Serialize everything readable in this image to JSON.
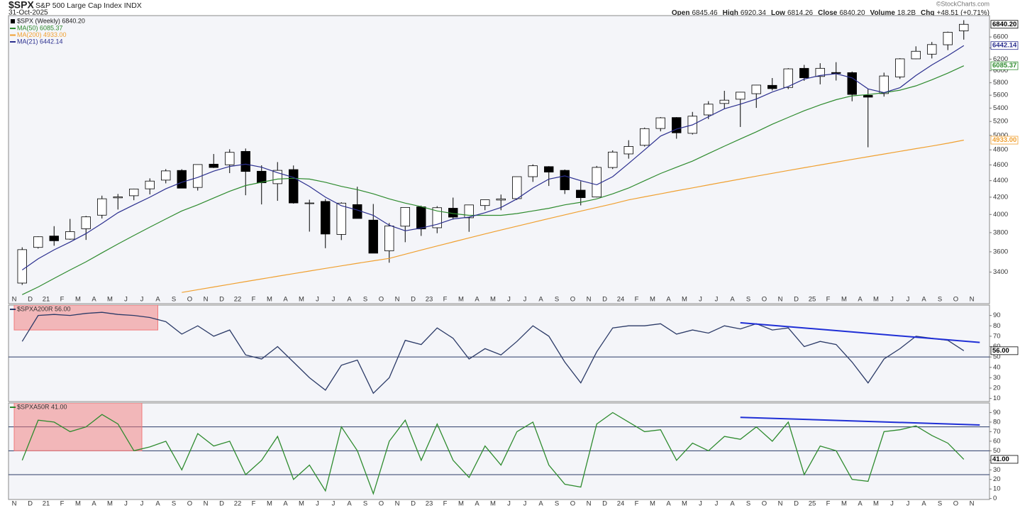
{
  "header": {
    "symbol": "$SPX",
    "name": "S&P 500 Large Cap Index INDX",
    "date": "31-Oct-2025",
    "watermark": "©StockCharts.com",
    "quote": [
      {
        "label": "Open",
        "value": "6845.46"
      },
      {
        "label": "High",
        "value": "6920.34"
      },
      {
        "label": "Low",
        "value": "6814.26"
      },
      {
        "label": "Close",
        "value": "6840.20"
      },
      {
        "label": "Volume",
        "value": "18.2B"
      },
      {
        "label": "Chg",
        "value": "+48.51 (+0.71%)"
      }
    ]
  },
  "chart_data": [
    {
      "type": "candlestick",
      "name": "$SPX (Weekly) 6840.20",
      "log_scale": true,
      "up_color": "#ffffff",
      "down_color": "#000000",
      "x": [
        "2020-11",
        "2020-12",
        "2021-01",
        "2021-02",
        "2021-03",
        "2021-04",
        "2021-05",
        "2021-06",
        "2021-07",
        "2021-08",
        "2021-09",
        "2021-10",
        "2021-11",
        "2021-12",
        "2022-01",
        "2022-02",
        "2022-03",
        "2022-04",
        "2022-05",
        "2022-06",
        "2022-07",
        "2022-08",
        "2022-09",
        "2022-10",
        "2022-11",
        "2022-12",
        "2023-01",
        "2023-02",
        "2023-03",
        "2023-04",
        "2023-05",
        "2023-06",
        "2023-07",
        "2023-08",
        "2023-09",
        "2023-10",
        "2023-11",
        "2023-12",
        "2024-01",
        "2024-02",
        "2024-03",
        "2024-04",
        "2024-05",
        "2024-06",
        "2024-07",
        "2024-08",
        "2024-09",
        "2024-10",
        "2024-11",
        "2024-12",
        "2025-01",
        "2025-02",
        "2025-03",
        "2025-04",
        "2025-05",
        "2025-06",
        "2025-07",
        "2025-08",
        "2025-09",
        "2025-10"
      ],
      "open": [
        3296,
        3645,
        3764,
        3731,
        3842,
        3992,
        4192,
        4217,
        4300,
        4407,
        4529,
        4317,
        4610,
        4602,
        4779,
        4519,
        4363,
        4540,
        4130,
        4150,
        3781,
        4113,
        3937,
        3610,
        3870,
        4087,
        3853,
        4071,
        3963,
        4102,
        4166,
        4183,
        4450,
        4578,
        4530,
        4284,
        4202,
        4567,
        4745,
        4862,
        5098,
        5258,
        5029,
        5297,
        5471,
        5537,
        5624,
        5758,
        5724,
        6041,
        5904,
        5970,
        5968,
        5598,
        5626,
        5897,
        6205,
        6288,
        6457,
        6715
      ],
      "high": [
        3646,
        3760,
        3870,
        3950,
        3983,
        4218,
        4238,
        4302,
        4429,
        4546,
        4545,
        4608,
        4744,
        4808,
        4818,
        4595,
        4637,
        4593,
        4170,
        4178,
        4140,
        4325,
        4120,
        3905,
        4080,
        4101,
        4095,
        4195,
        4110,
        4170,
        4231,
        4448,
        4607,
        4584,
        4541,
        4393,
        4587,
        4793,
        4932,
        5111,
        5265,
        5264,
        5342,
        5506,
        5670,
        5652,
        5767,
        5878,
        6044,
        6100,
        6129,
        6147,
        5987,
        5696,
        5968,
        6216,
        6428,
        6508,
        6700,
        6920
      ],
      "low": [
        3279,
        3633,
        3662,
        3725,
        3723,
        3955,
        4056,
        4164,
        4233,
        4367,
        4306,
        4279,
        4560,
        4495,
        4223,
        4115,
        4157,
        4124,
        3811,
        3637,
        3721,
        3955,
        3585,
        3491,
        3699,
        3765,
        3794,
        3943,
        3809,
        4049,
        4048,
        4167,
        4385,
        4335,
        4238,
        4104,
        4197,
        4547,
        4682,
        4845,
        5057,
        4953,
        5012,
        5235,
        5391,
        5120,
        5403,
        5675,
        5697,
        5832,
        5774,
        5837,
        5505,
        4835,
        5578,
        5862,
        6201,
        6212,
        6360,
        6551
      ],
      "close": [
        3622,
        3756,
        3714,
        3811,
        3973,
        4181,
        4204,
        4298,
        4395,
        4523,
        4308,
        4605,
        4567,
        4766,
        4516,
        4374,
        4530,
        4132,
        4132,
        3785,
        4130,
        3955,
        3586,
        3872,
        4080,
        3840,
        4077,
        3970,
        4109,
        4169,
        4180,
        4450,
        4589,
        4508,
        4288,
        4194,
        4568,
        4770,
        4846,
        5096,
        5254,
        5036,
        5278,
        5460,
        5522,
        5648,
        5762,
        5705,
        6032,
        5882,
        6041,
        5955,
        5612,
        5569,
        5912,
        6205,
        6339,
        6460,
        6688,
        6840
      ],
      "series": [
        {
          "name": "MA(50) 6085.37",
          "color": "#2e8b2e",
          "values": [
            3190,
            3260,
            3340,
            3420,
            3500,
            3590,
            3680,
            3770,
            3860,
            3950,
            4040,
            4110,
            4190,
            4270,
            4340,
            4380,
            4420,
            4430,
            4420,
            4380,
            4330,
            4290,
            4240,
            4180,
            4130,
            4090,
            4040,
            4010,
            3990,
            3990,
            3990,
            4010,
            4040,
            4070,
            4110,
            4140,
            4180,
            4240,
            4310,
            4400,
            4490,
            4570,
            4650,
            4750,
            4850,
            4950,
            5050,
            5160,
            5260,
            5360,
            5450,
            5530,
            5590,
            5610,
            5640,
            5680,
            5750,
            5850,
            5960,
            6085.37
          ]
        },
        {
          "name": "MA(200) 4933.00",
          "color": "#f0a030",
          "values": [
            null,
            null,
            null,
            null,
            null,
            null,
            null,
            null,
            null,
            null,
            3210,
            3235,
            3260,
            3285,
            3310,
            3335,
            3360,
            3385,
            3410,
            3435,
            3460,
            3485,
            3510,
            3534,
            3576,
            3618,
            3660,
            3702,
            3744,
            3786,
            3828,
            3870,
            3912,
            3954,
            3996,
            4038,
            4080,
            4122,
            4168,
            4204,
            4240,
            4276,
            4312,
            4348,
            4384,
            4420,
            4456,
            4492,
            4528,
            4564,
            4600,
            4636,
            4672,
            4708,
            4744,
            4780,
            4816,
            4852,
            4890,
            4933
          ]
        },
        {
          "name": "MA(21) 6442.14",
          "color": "#2b2f8f",
          "values": [
            3420,
            3530,
            3620,
            3700,
            3790,
            3900,
            4020,
            4110,
            4200,
            4300,
            4380,
            4440,
            4520,
            4580,
            4610,
            4570,
            4500,
            4440,
            4330,
            4200,
            4100,
            4050,
            3990,
            3880,
            3820,
            3850,
            3890,
            3950,
            3970,
            4020,
            4080,
            4180,
            4310,
            4420,
            4460,
            4400,
            4350,
            4450,
            4620,
            4800,
            4990,
            5090,
            5150,
            5270,
            5390,
            5460,
            5540,
            5650,
            5740,
            5860,
            5920,
            5950,
            5880,
            5700,
            5640,
            5720,
            5920,
            6100,
            6260,
            6442.14
          ]
        }
      ],
      "last_tags": [
        {
          "value": 6840.2,
          "label": "6840.20",
          "color": "#000000"
        },
        {
          "value": 6442.14,
          "label": "6442.14",
          "color": "#2b2f8f"
        },
        {
          "value": 6085.37,
          "label": "6085.37",
          "color": "#2e8b2e"
        },
        {
          "value": 4933,
          "label": "4933.00",
          "color": "#f0a030"
        }
      ],
      "xlim": [
        "2020-11",
        "2025-11"
      ],
      "ylim": [
        3110,
        7010
      ],
      "yticks": [
        3400,
        3600,
        3800,
        4000,
        4200,
        4400,
        4600,
        4800,
        5000,
        5200,
        5400,
        5600,
        5800,
        6000,
        6200,
        6400,
        6600
      ],
      "xticks": [
        {
          "value": "2020-11",
          "label": "N"
        },
        {
          "value": "2020-12",
          "label": "D"
        },
        {
          "value": "2021-01",
          "label": "21"
        },
        {
          "value": "2021-02",
          "label": "F"
        },
        {
          "value": "2021-03",
          "label": "M"
        },
        {
          "value": "2021-04",
          "label": "A"
        },
        {
          "value": "2021-05",
          "label": "M"
        },
        {
          "value": "2021-06",
          "label": "J"
        },
        {
          "value": "2021-07",
          "label": "J"
        },
        {
          "value": "2021-08",
          "label": "A"
        },
        {
          "value": "2021-09",
          "label": "S"
        },
        {
          "value": "2021-10",
          "label": "O"
        },
        {
          "value": "2021-11",
          "label": "N"
        },
        {
          "value": "2021-12",
          "label": "D"
        },
        {
          "value": "2022-01",
          "label": "22"
        },
        {
          "value": "2022-02",
          "label": "F"
        },
        {
          "value": "2022-03",
          "label": "M"
        },
        {
          "value": "2022-04",
          "label": "A"
        },
        {
          "value": "2022-05",
          "label": "M"
        },
        {
          "value": "2022-06",
          "label": "J"
        },
        {
          "value": "2022-07",
          "label": "J"
        },
        {
          "value": "2022-08",
          "label": "A"
        },
        {
          "value": "2022-09",
          "label": "S"
        },
        {
          "value": "2022-10",
          "label": "O"
        },
        {
          "value": "2022-11",
          "label": "N"
        },
        {
          "value": "2022-12",
          "label": "D"
        },
        {
          "value": "2023-01",
          "label": "23"
        },
        {
          "value": "2023-02",
          "label": "F"
        },
        {
          "value": "2023-03",
          "label": "M"
        },
        {
          "value": "2023-04",
          "label": "A"
        },
        {
          "value": "2023-05",
          "label": "M"
        },
        {
          "value": "2023-06",
          "label": "J"
        },
        {
          "value": "2023-07",
          "label": "J"
        },
        {
          "value": "2023-08",
          "label": "A"
        },
        {
          "value": "2023-09",
          "label": "S"
        },
        {
          "value": "2023-10",
          "label": "O"
        },
        {
          "value": "2023-11",
          "label": "N"
        },
        {
          "value": "2023-12",
          "label": "D"
        },
        {
          "value": "2024-01",
          "label": "24"
        },
        {
          "value": "2024-02",
          "label": "F"
        },
        {
          "value": "2024-03",
          "label": "M"
        },
        {
          "value": "2024-04",
          "label": "A"
        },
        {
          "value": "2024-05",
          "label": "M"
        },
        {
          "value": "2024-06",
          "label": "J"
        },
        {
          "value": "2024-07",
          "label": "J"
        },
        {
          "value": "2024-08",
          "label": "A"
        },
        {
          "value": "2024-09",
          "label": "S"
        },
        {
          "value": "2024-10",
          "label": "O"
        },
        {
          "value": "2024-11",
          "label": "N"
        },
        {
          "value": "2024-12",
          "label": "D"
        },
        {
          "value": "2025-01",
          "label": "25"
        },
        {
          "value": "2025-02",
          "label": "F"
        },
        {
          "value": "2025-03",
          "label": "M"
        },
        {
          "value": "2025-04",
          "label": "A"
        },
        {
          "value": "2025-05",
          "label": "M"
        },
        {
          "value": "2025-06",
          "label": "J"
        },
        {
          "value": "2025-07",
          "label": "J"
        },
        {
          "value": "2025-08",
          "label": "A"
        },
        {
          "value": "2025-09",
          "label": "S"
        },
        {
          "value": "2025-10",
          "label": "O"
        },
        {
          "value": "2025-11",
          "label": "N"
        }
      ]
    },
    {
      "type": "line",
      "title": "$SPXA200R 56.00",
      "color": "#2b3a67",
      "x": [
        "2020-11",
        "2020-12",
        "2021-01",
        "2021-02",
        "2021-03",
        "2021-04",
        "2021-05",
        "2021-06",
        "2021-07",
        "2021-08",
        "2021-09",
        "2021-10",
        "2021-11",
        "2021-12",
        "2022-01",
        "2022-02",
        "2022-03",
        "2022-04",
        "2022-05",
        "2022-06",
        "2022-07",
        "2022-08",
        "2022-09",
        "2022-10",
        "2022-11",
        "2022-12",
        "2023-01",
        "2023-02",
        "2023-03",
        "2023-04",
        "2023-05",
        "2023-06",
        "2023-07",
        "2023-08",
        "2023-09",
        "2023-10",
        "2023-11",
        "2023-12",
        "2024-01",
        "2024-02",
        "2024-03",
        "2024-04",
        "2024-05",
        "2024-06",
        "2024-07",
        "2024-08",
        "2024-09",
        "2024-10",
        "2024-11",
        "2024-12",
        "2025-01",
        "2025-02",
        "2025-03",
        "2025-04",
        "2025-05",
        "2025-06",
        "2025-07",
        "2025-08",
        "2025-09",
        "2025-10"
      ],
      "values": [
        65,
        90,
        91,
        90,
        92,
        93,
        91,
        90,
        88,
        84,
        72,
        80,
        70,
        76,
        52,
        48,
        60,
        45,
        30,
        18,
        42,
        47,
        15,
        30,
        66,
        62,
        78,
        68,
        48,
        58,
        52,
        65,
        80,
        70,
        45,
        25,
        55,
        78,
        80,
        80,
        82,
        72,
        76,
        73,
        80,
        77,
        82,
        76,
        78,
        60,
        65,
        62,
        45,
        25,
        48,
        58,
        70,
        68,
        66,
        56
      ],
      "last_tags": [
        {
          "value": 56,
          "label": "56.00",
          "color": "#000000"
        }
      ],
      "ref_lines": [
        50
      ],
      "trendline": {
        "x": [
          "2024-08",
          "2025-11"
        ],
        "values": [
          83,
          64
        ],
        "color": "#1f2fd6"
      },
      "highlight": {
        "x": [
          "2020-11",
          "2021-08"
        ],
        "y": [
          76,
          100
        ],
        "color": "#f07a7a"
      },
      "xlim": [
        "2020-11",
        "2025-11"
      ],
      "ylim": [
        7,
        100
      ],
      "yticks": [
        10,
        20,
        30,
        40,
        50,
        60,
        70,
        80,
        90
      ]
    },
    {
      "type": "line",
      "title": "$SPXA50R 41.00",
      "color": "#2e8b2e",
      "x": [
        "2020-11",
        "2020-12",
        "2021-01",
        "2021-02",
        "2021-03",
        "2021-04",
        "2021-05",
        "2021-06",
        "2021-07",
        "2021-08",
        "2021-09",
        "2021-10",
        "2021-11",
        "2021-12",
        "2022-01",
        "2022-02",
        "2022-03",
        "2022-04",
        "2022-05",
        "2022-06",
        "2022-07",
        "2022-08",
        "2022-09",
        "2022-10",
        "2022-11",
        "2022-12",
        "2023-01",
        "2023-02",
        "2023-03",
        "2023-04",
        "2023-05",
        "2023-06",
        "2023-07",
        "2023-08",
        "2023-09",
        "2023-10",
        "2023-11",
        "2023-12",
        "2024-01",
        "2024-02",
        "2024-03",
        "2024-04",
        "2024-05",
        "2024-06",
        "2024-07",
        "2024-08",
        "2024-09",
        "2024-10",
        "2024-11",
        "2024-12",
        "2025-01",
        "2025-02",
        "2025-03",
        "2025-04",
        "2025-05",
        "2025-06",
        "2025-07",
        "2025-08",
        "2025-09",
        "2025-10"
      ],
      "values": [
        40,
        82,
        80,
        70,
        75,
        88,
        78,
        50,
        54,
        60,
        30,
        68,
        55,
        60,
        25,
        40,
        65,
        20,
        35,
        8,
        75,
        50,
        5,
        60,
        82,
        40,
        78,
        40,
        22,
        55,
        35,
        70,
        80,
        35,
        15,
        12,
        78,
        90,
        80,
        70,
        72,
        40,
        58,
        50,
        65,
        62,
        75,
        60,
        80,
        25,
        55,
        50,
        20,
        18,
        70,
        72,
        76,
        66,
        58,
        41
      ],
      "last_tags": [
        {
          "value": 41,
          "label": "41.00",
          "color": "#000000"
        }
      ],
      "ref_lines": [
        25,
        50,
        75
      ],
      "trendline": {
        "x": [
          "2024-08",
          "2025-11"
        ],
        "values": [
          85,
          77
        ],
        "color": "#1f2fd6"
      },
      "highlight": {
        "x": [
          "2020-11",
          "2021-07"
        ],
        "y": [
          50,
          100
        ],
        "color": "#f07a7a"
      },
      "xlim": [
        "2020-11",
        "2025-11"
      ],
      "ylim": [
        -1,
        100
      ],
      "yticks": [
        0,
        10,
        20,
        30,
        40,
        50,
        60,
        70,
        80,
        90
      ]
    }
  ]
}
